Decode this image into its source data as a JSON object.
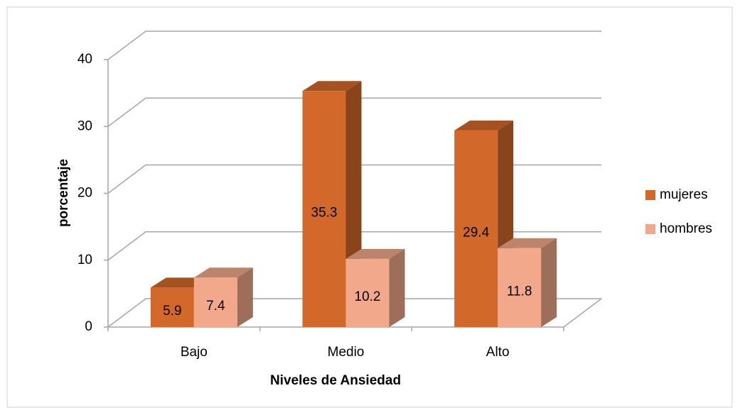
{
  "chart_data": {
    "type": "bar3d",
    "x_label": "Niveles de Ansiedad",
    "y_label": "porcentaje",
    "categories": [
      "Bajo",
      "Medio",
      "Alto"
    ],
    "series": [
      {
        "name": "mujeres",
        "color": "#d2692a",
        "values": [
          5.9,
          35.3,
          29.4
        ]
      },
      {
        "name": "hombres",
        "color": "#f2a98b",
        "values": [
          7.4,
          10.2,
          11.8
        ]
      }
    ],
    "ylim": [
      0,
      40
    ],
    "yticks": [
      0,
      10,
      20,
      30,
      40
    ],
    "grid": true,
    "legend": "right"
  }
}
